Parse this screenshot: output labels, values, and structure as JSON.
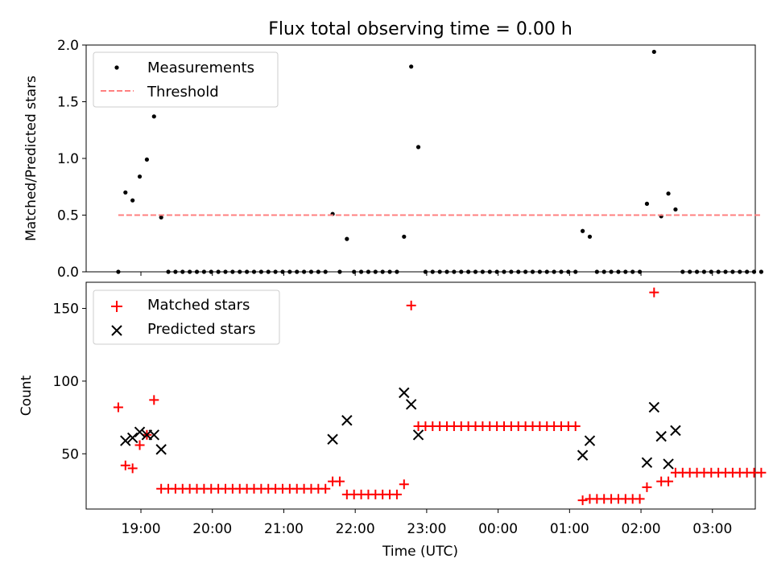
{
  "chart_data": [
    {
      "type": "scatter",
      "title": "Flux total observing time = 0.00 h",
      "xlabel": "",
      "ylabel": "Matched/Predicted stars",
      "ylim": [
        0,
        2.0
      ],
      "yticks": [
        0.0,
        0.5,
        1.0,
        1.5,
        2.0
      ],
      "ytick_labels": [
        "0.0",
        "0.5",
        "1.0",
        "1.5",
        "2.0"
      ],
      "legend_position": "top-left",
      "series": [
        {
          "name": "Measurements",
          "marker": "dot",
          "color": "#000000",
          "points": [
            [
              "18:41",
              0.0
            ],
            [
              "18:47",
              0.7
            ],
            [
              "18:53",
              0.63
            ],
            [
              "18:59",
              0.84
            ],
            [
              "19:05",
              0.99
            ],
            [
              "19:11",
              1.37
            ],
            [
              "19:17",
              0.48
            ],
            [
              "19:23",
              0
            ],
            [
              "19:29",
              0
            ],
            [
              "19:35",
              0
            ],
            [
              "19:41",
              0
            ],
            [
              "19:47",
              0
            ],
            [
              "19:53",
              0
            ],
            [
              "19:59",
              0
            ],
            [
              "20:05",
              0
            ],
            [
              "20:11",
              0
            ],
            [
              "20:17",
              0
            ],
            [
              "20:23",
              0
            ],
            [
              "20:29",
              0
            ],
            [
              "20:35",
              0
            ],
            [
              "20:41",
              0
            ],
            [
              "20:47",
              0
            ],
            [
              "20:53",
              0
            ],
            [
              "20:59",
              0
            ],
            [
              "21:05",
              0
            ],
            [
              "21:11",
              0
            ],
            [
              "21:17",
              0
            ],
            [
              "21:23",
              0
            ],
            [
              "21:29",
              0
            ],
            [
              "21:35",
              0
            ],
            [
              "21:41",
              0.51
            ],
            [
              "21:47",
              0
            ],
            [
              "21:53",
              0.29
            ],
            [
              "21:59",
              0
            ],
            [
              "22:05",
              0
            ],
            [
              "22:11",
              0
            ],
            [
              "22:17",
              0
            ],
            [
              "22:23",
              0
            ],
            [
              "22:29",
              0
            ],
            [
              "22:35",
              0
            ],
            [
              "22:41",
              0.31
            ],
            [
              "22:47",
              1.81
            ],
            [
              "22:53",
              1.1
            ],
            [
              "22:59",
              0
            ],
            [
              "23:05",
              0
            ],
            [
              "23:11",
              0
            ],
            [
              "23:17",
              0
            ],
            [
              "23:23",
              0
            ],
            [
              "23:29",
              0
            ],
            [
              "23:35",
              0
            ],
            [
              "23:41",
              0
            ],
            [
              "23:47",
              0
            ],
            [
              "23:53",
              0
            ],
            [
              "23:59",
              0
            ],
            [
              "00:05",
              0
            ],
            [
              "00:11",
              0
            ],
            [
              "00:17",
              0
            ],
            [
              "00:23",
              0
            ],
            [
              "00:29",
              0
            ],
            [
              "00:35",
              0
            ],
            [
              "00:41",
              0
            ],
            [
              "00:47",
              0
            ],
            [
              "00:53",
              0
            ],
            [
              "00:59",
              0
            ],
            [
              "01:05",
              0
            ],
            [
              "01:11",
              0.36
            ],
            [
              "01:17",
              0.31
            ],
            [
              "01:23",
              0
            ],
            [
              "01:29",
              0
            ],
            [
              "01:35",
              0
            ],
            [
              "01:41",
              0
            ],
            [
              "01:47",
              0
            ],
            [
              "01:53",
              0
            ],
            [
              "01:59",
              0
            ],
            [
              "02:05",
              0.6
            ],
            [
              "02:11",
              1.94
            ],
            [
              "02:17",
              0.49
            ],
            [
              "02:23",
              0.69
            ],
            [
              "02:29",
              0.55
            ],
            [
              "02:35",
              0
            ],
            [
              "02:41",
              0
            ],
            [
              "02:47",
              0
            ],
            [
              "02:53",
              0
            ],
            [
              "02:59",
              0
            ],
            [
              "03:05",
              0
            ],
            [
              "03:11",
              0
            ],
            [
              "03:17",
              0
            ],
            [
              "03:23",
              0
            ],
            [
              "03:29",
              0
            ],
            [
              "03:35",
              0
            ],
            [
              "03:41",
              0
            ]
          ]
        },
        {
          "name": "Threshold",
          "marker": "dashed-line",
          "color": "#ff8080",
          "points": [
            [
              "18:41",
              0.5
            ],
            [
              "03:41",
              0.5
            ]
          ]
        }
      ]
    },
    {
      "type": "scatter",
      "title": "",
      "xlabel": "Time (UTC)",
      "ylabel": "Count",
      "ylim": [
        12,
        168
      ],
      "yticks": [
        50,
        100,
        150
      ],
      "ytick_labels": [
        "50",
        "100",
        "150"
      ],
      "xticks": [
        "19:00",
        "20:00",
        "21:00",
        "22:00",
        "23:00",
        "00:00",
        "01:00",
        "02:00",
        "03:00"
      ],
      "legend_position": "top-left",
      "series": [
        {
          "name": "Matched stars",
          "marker": "plus",
          "color": "#ff0000",
          "points": [
            [
              "18:41",
              82
            ],
            [
              "18:47",
              42
            ],
            [
              "18:53",
              40
            ],
            [
              "18:59",
              56
            ],
            [
              "19:05",
              63
            ],
            [
              "19:11",
              87
            ],
            [
              "19:17",
              26
            ],
            [
              "19:23",
              26
            ],
            [
              "19:29",
              26
            ],
            [
              "19:35",
              26
            ],
            [
              "19:41",
              26
            ],
            [
              "19:47",
              26
            ],
            [
              "19:53",
              26
            ],
            [
              "19:59",
              26
            ],
            [
              "20:05",
              26
            ],
            [
              "20:11",
              26
            ],
            [
              "20:17",
              26
            ],
            [
              "20:23",
              26
            ],
            [
              "20:29",
              26
            ],
            [
              "20:35",
              26
            ],
            [
              "20:41",
              26
            ],
            [
              "20:47",
              26
            ],
            [
              "20:53",
              26
            ],
            [
              "20:59",
              26
            ],
            [
              "21:05",
              26
            ],
            [
              "21:11",
              26
            ],
            [
              "21:17",
              26
            ],
            [
              "21:23",
              26
            ],
            [
              "21:29",
              26
            ],
            [
              "21:35",
              26
            ],
            [
              "21:41",
              31
            ],
            [
              "21:47",
              31
            ],
            [
              "21:53",
              22
            ],
            [
              "21:59",
              22
            ],
            [
              "22:05",
              22
            ],
            [
              "22:11",
              22
            ],
            [
              "22:17",
              22
            ],
            [
              "22:23",
              22
            ],
            [
              "22:29",
              22
            ],
            [
              "22:35",
              22
            ],
            [
              "22:41",
              29
            ],
            [
              "22:47",
              152
            ],
            [
              "22:53",
              69
            ],
            [
              "22:59",
              69
            ],
            [
              "23:05",
              69
            ],
            [
              "23:11",
              69
            ],
            [
              "23:17",
              69
            ],
            [
              "23:23",
              69
            ],
            [
              "23:29",
              69
            ],
            [
              "23:35",
              69
            ],
            [
              "23:41",
              69
            ],
            [
              "23:47",
              69
            ],
            [
              "23:53",
              69
            ],
            [
              "23:59",
              69
            ],
            [
              "00:05",
              69
            ],
            [
              "00:11",
              69
            ],
            [
              "00:17",
              69
            ],
            [
              "00:23",
              69
            ],
            [
              "00:29",
              69
            ],
            [
              "00:35",
              69
            ],
            [
              "00:41",
              69
            ],
            [
              "00:47",
              69
            ],
            [
              "00:53",
              69
            ],
            [
              "00:59",
              69
            ],
            [
              "01:05",
              69
            ],
            [
              "01:11",
              18
            ],
            [
              "01:17",
              19
            ],
            [
              "01:23",
              19
            ],
            [
              "01:29",
              19
            ],
            [
              "01:35",
              19
            ],
            [
              "01:41",
              19
            ],
            [
              "01:47",
              19
            ],
            [
              "01:53",
              19
            ],
            [
              "01:59",
              19
            ],
            [
              "02:05",
              27
            ],
            [
              "02:11",
              161
            ],
            [
              "02:17",
              31
            ],
            [
              "02:23",
              31
            ],
            [
              "02:29",
              37
            ],
            [
              "02:35",
              37
            ],
            [
              "02:41",
              37
            ],
            [
              "02:47",
              37
            ],
            [
              "02:53",
              37
            ],
            [
              "02:59",
              37
            ],
            [
              "03:05",
              37
            ],
            [
              "03:11",
              37
            ],
            [
              "03:17",
              37
            ],
            [
              "03:23",
              37
            ],
            [
              "03:29",
              37
            ],
            [
              "03:35",
              37
            ],
            [
              "03:41",
              37
            ]
          ]
        },
        {
          "name": "Predicted stars",
          "marker": "x",
          "color": "#000000",
          "points": [
            [
              "18:47",
              59
            ],
            [
              "18:53",
              61
            ],
            [
              "18:59",
              65
            ],
            [
              "19:05",
              63
            ],
            [
              "19:11",
              63
            ],
            [
              "19:17",
              53
            ],
            [
              "21:41",
              60
            ],
            [
              "21:53",
              73
            ],
            [
              "22:41",
              92
            ],
            [
              "22:47",
              84
            ],
            [
              "22:53",
              63
            ],
            [
              "01:11",
              49
            ],
            [
              "01:17",
              59
            ],
            [
              "02:05",
              44
            ],
            [
              "02:11",
              82
            ],
            [
              "02:17",
              62
            ],
            [
              "02:23",
              43
            ],
            [
              "02:29",
              66
            ]
          ]
        }
      ]
    }
  ]
}
